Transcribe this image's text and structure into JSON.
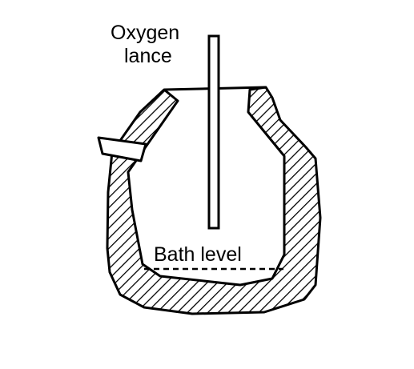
{
  "labels": {
    "lance_line1": "Oxygen",
    "lance_line2": "lance",
    "bath": "Bath level"
  },
  "colors": {
    "ink": "#000000",
    "background": "#ffffff"
  }
}
